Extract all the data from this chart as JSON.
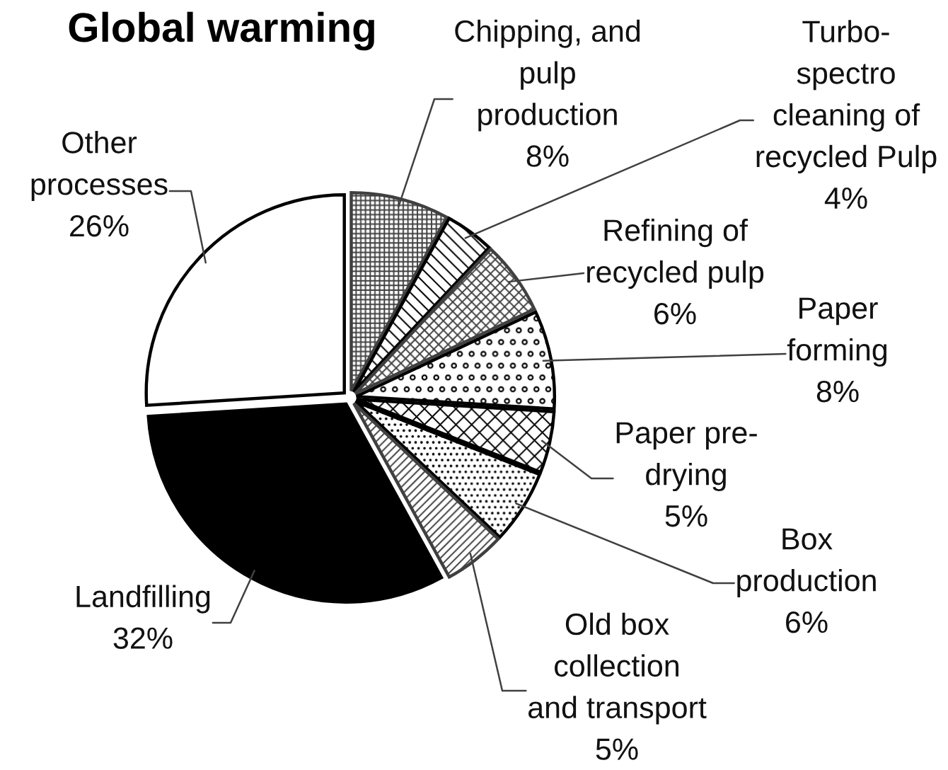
{
  "chart_data": {
    "type": "pie",
    "title": "Global warming",
    "categories": [
      "Chipping, and\npulp\nproduction",
      "Turbo-\nspectro\ncleaning of\nrecycled Pulp",
      "Refining of\nrecycled pulp",
      "Paper\nforming",
      "Paper pre-\ndrying",
      "Box\nproduction",
      "Old box\ncollection\nand transport",
      "Landfilling",
      "Other\nprocesses"
    ],
    "values": [
      8,
      4,
      6,
      8,
      5,
      6,
      5,
      32,
      26
    ],
    "value_labels": [
      "8%",
      "4%",
      "6%",
      "8%",
      "5%",
      "6%",
      "5%",
      "32%",
      "26%"
    ],
    "colors": [
      "#404040",
      "#000000",
      "#404040",
      "#000000",
      "#000000",
      "#000000",
      "#404040",
      "#000000",
      "#ffffff"
    ]
  }
}
